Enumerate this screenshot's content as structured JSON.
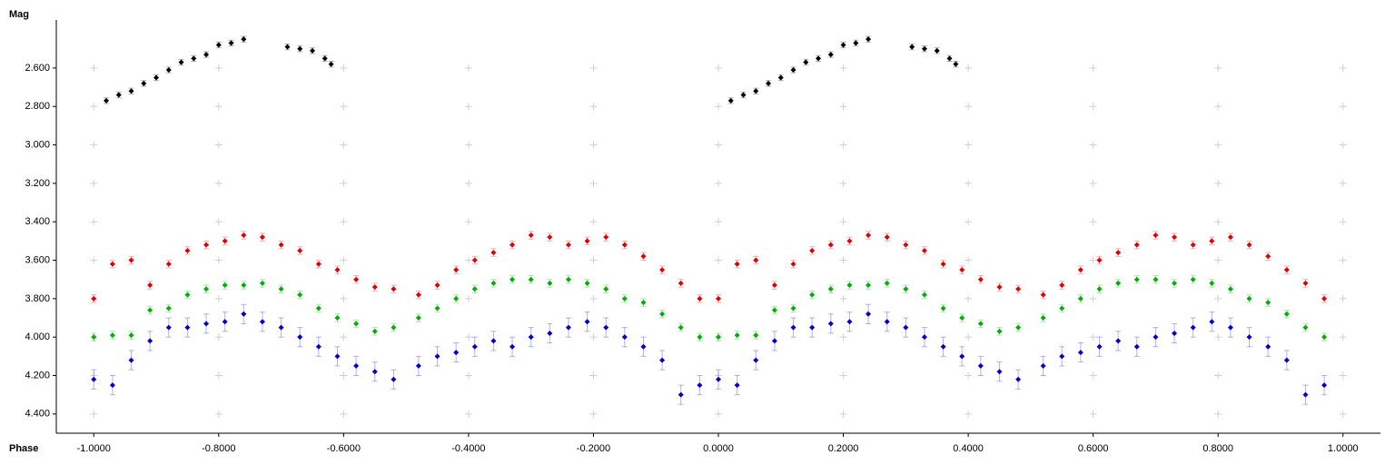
{
  "chart_data": {
    "type": "scatter",
    "y_label": "Mag",
    "x_label": "Phase",
    "xlim": [
      -1.06,
      1.06
    ],
    "ylim": [
      2.35,
      4.5
    ],
    "y_inverted": true,
    "grid": true,
    "xticks": [
      {
        "value": -1,
        "label": "-1.0000"
      },
      {
        "value": -0.8,
        "label": "-0.8000"
      },
      {
        "value": -0.6,
        "label": "-0.6000"
      },
      {
        "value": -0.4,
        "label": "-0.4000"
      },
      {
        "value": -0.2,
        "label": "-0.2000"
      },
      {
        "value": 0,
        "label": "0.0000"
      },
      {
        "value": 0.2,
        "label": "0.2000"
      },
      {
        "value": 0.4,
        "label": "0.4000"
      },
      {
        "value": 0.6,
        "label": "0.6000"
      },
      {
        "value": 0.8,
        "label": "0.8000"
      },
      {
        "value": 1,
        "label": "1.0000"
      }
    ],
    "yticks": [
      {
        "value": 2.6,
        "label": "2.600"
      },
      {
        "value": 2.8,
        "label": "2.800"
      },
      {
        "value": 3,
        "label": "3.000"
      },
      {
        "value": 3.2,
        "label": "3.200"
      },
      {
        "value": 3.4,
        "label": "3.400"
      },
      {
        "value": 3.6,
        "label": "3.600"
      },
      {
        "value": 3.8,
        "label": "3.800"
      },
      {
        "value": 4,
        "label": "4.000"
      },
      {
        "value": 4.2,
        "label": "4.200"
      },
      {
        "value": 4.4,
        "label": "4.400"
      }
    ],
    "series": [
      {
        "color": "#000000",
        "error": 0.015,
        "x": [
          -0.98,
          -0.96,
          -0.94,
          -0.92,
          -0.9,
          -0.88,
          -0.86,
          -0.84,
          -0.82,
          -0.8,
          -0.78,
          -0.76,
          -0.69,
          -0.67,
          -0.65,
          -0.63,
          -0.62,
          0.02,
          0.04,
          0.06,
          0.08,
          0.1,
          0.12,
          0.14,
          0.16,
          0.18,
          0.2,
          0.22,
          0.24,
          0.31,
          0.33,
          0.35,
          0.37,
          0.38
        ],
        "values": [
          2.77,
          2.74,
          2.72,
          2.68,
          2.65,
          2.61,
          2.57,
          2.55,
          2.53,
          2.48,
          2.47,
          2.45,
          2.49,
          2.5,
          2.51,
          2.55,
          2.58,
          2.77,
          2.74,
          2.72,
          2.68,
          2.65,
          2.61,
          2.57,
          2.55,
          2.53,
          2.48,
          2.47,
          2.45,
          2.49,
          2.5,
          2.51,
          2.55,
          2.58
        ]
      },
      {
        "color": "#e00000",
        "error": 0.02,
        "x": [
          -1,
          -0.97,
          -0.94,
          -0.91,
          -0.88,
          -0.85,
          -0.82,
          -0.79,
          -0.76,
          -0.73,
          -0.7,
          -0.67,
          -0.64,
          -0.61,
          -0.58,
          -0.55,
          -0.52,
          -0.48,
          -0.45,
          -0.42,
          -0.39,
          -0.36,
          -0.33,
          -0.3,
          -0.27,
          -0.24,
          -0.21,
          -0.18,
          -0.15,
          -0.12,
          -0.09,
          -0.06,
          -0.03,
          0,
          0.03,
          0.06,
          0.09,
          0.12,
          0.15,
          0.18,
          0.21,
          0.24,
          0.27,
          0.3,
          0.33,
          0.36,
          0.39,
          0.42,
          0.45,
          0.48,
          0.52,
          0.55,
          0.58,
          0.61,
          0.64,
          0.67,
          0.7,
          0.73,
          0.76,
          0.79,
          0.82,
          0.85,
          0.88,
          0.91,
          0.94,
          0.97
        ],
        "values": [
          3.8,
          3.62,
          3.6,
          3.73,
          3.62,
          3.55,
          3.52,
          3.5,
          3.47,
          3.48,
          3.52,
          3.55,
          3.62,
          3.65,
          3.7,
          3.74,
          3.75,
          3.78,
          3.73,
          3.65,
          3.6,
          3.56,
          3.52,
          3.47,
          3.48,
          3.52,
          3.5,
          3.48,
          3.52,
          3.58,
          3.65,
          3.72,
          3.8,
          3.8,
          3.62,
          3.6,
          3.73,
          3.62,
          3.55,
          3.52,
          3.5,
          3.47,
          3.48,
          3.52,
          3.55,
          3.62,
          3.65,
          3.7,
          3.74,
          3.75,
          3.78,
          3.73,
          3.65,
          3.6,
          3.56,
          3.52,
          3.47,
          3.48,
          3.52,
          3.5,
          3.48,
          3.52,
          3.58,
          3.65,
          3.72,
          3.8
        ]
      },
      {
        "color": "#00b000",
        "error": 0.02,
        "x": [
          -1,
          -0.97,
          -0.94,
          -0.91,
          -0.88,
          -0.85,
          -0.82,
          -0.79,
          -0.76,
          -0.73,
          -0.7,
          -0.67,
          -0.64,
          -0.61,
          -0.58,
          -0.55,
          -0.52,
          -0.48,
          -0.45,
          -0.42,
          -0.39,
          -0.36,
          -0.33,
          -0.3,
          -0.27,
          -0.24,
          -0.21,
          -0.18,
          -0.15,
          -0.12,
          -0.09,
          -0.06,
          -0.03,
          0,
          0.03,
          0.06,
          0.09,
          0.12,
          0.15,
          0.18,
          0.21,
          0.24,
          0.27,
          0.3,
          0.33,
          0.36,
          0.39,
          0.42,
          0.45,
          0.48,
          0.52,
          0.55,
          0.58,
          0.61,
          0.64,
          0.67,
          0.7,
          0.73,
          0.76,
          0.79,
          0.82,
          0.85,
          0.88,
          0.91,
          0.94,
          0.97
        ],
        "values": [
          4,
          3.99,
          3.99,
          3.86,
          3.85,
          3.78,
          3.75,
          3.73,
          3.73,
          3.72,
          3.75,
          3.78,
          3.85,
          3.9,
          3.93,
          3.97,
          3.95,
          3.9,
          3.85,
          3.8,
          3.75,
          3.72,
          3.7,
          3.7,
          3.72,
          3.7,
          3.72,
          3.75,
          3.8,
          3.82,
          3.88,
          3.95,
          4,
          4,
          3.99,
          3.99,
          3.86,
          3.85,
          3.78,
          3.75,
          3.73,
          3.73,
          3.72,
          3.75,
          3.78,
          3.85,
          3.9,
          3.93,
          3.97,
          3.95,
          3.9,
          3.85,
          3.8,
          3.75,
          3.72,
          3.7,
          3.7,
          3.72,
          3.7,
          3.72,
          3.75,
          3.8,
          3.82,
          3.88,
          3.95,
          4
        ]
      },
      {
        "color": "#0000d0",
        "error": 0.05,
        "x": [
          -1,
          -0.97,
          -0.94,
          -0.91,
          -0.88,
          -0.85,
          -0.82,
          -0.79,
          -0.76,
          -0.73,
          -0.7,
          -0.67,
          -0.64,
          -0.61,
          -0.58,
          -0.55,
          -0.52,
          -0.48,
          -0.45,
          -0.42,
          -0.39,
          -0.36,
          -0.33,
          -0.3,
          -0.27,
          -0.24,
          -0.21,
          -0.18,
          -0.15,
          -0.12,
          -0.09,
          -0.06,
          -0.03,
          0,
          0.03,
          0.06,
          0.09,
          0.12,
          0.15,
          0.18,
          0.21,
          0.24,
          0.27,
          0.3,
          0.33,
          0.36,
          0.39,
          0.42,
          0.45,
          0.48,
          0.52,
          0.55,
          0.58,
          0.61,
          0.64,
          0.67,
          0.7,
          0.73,
          0.76,
          0.79,
          0.82,
          0.85,
          0.88,
          0.91,
          0.94,
          0.97
        ],
        "values": [
          4.22,
          4.25,
          4.12,
          4.02,
          3.95,
          3.95,
          3.93,
          3.92,
          3.88,
          3.92,
          3.95,
          4,
          4.05,
          4.1,
          4.15,
          4.18,
          4.22,
          4.15,
          4.1,
          4.08,
          4.05,
          4.02,
          4.05,
          4,
          3.98,
          3.95,
          3.92,
          3.95,
          4,
          4.05,
          4.12,
          4.3,
          4.25,
          4.22,
          4.25,
          4.12,
          4.02,
          3.95,
          3.95,
          3.93,
          3.92,
          3.88,
          3.92,
          3.95,
          4,
          4.05,
          4.1,
          4.15,
          4.18,
          4.22,
          4.15,
          4.1,
          4.08,
          4.05,
          4.02,
          4.05,
          4,
          3.98,
          3.95,
          3.92,
          3.95,
          4,
          4.05,
          4.12,
          4.3,
          4.25
        ]
      }
    ]
  }
}
